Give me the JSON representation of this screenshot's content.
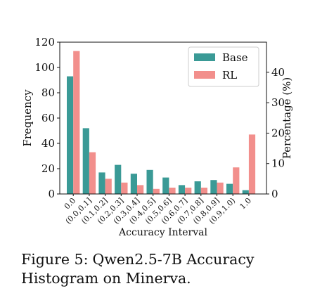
{
  "chart_data": {
    "type": "bar",
    "xlabel": "Accuracy Interval",
    "ylabel": "Frequency",
    "y2label": "Percentage (%)",
    "categories": [
      "0.0",
      "(0.0,0.1]",
      "(0.1,0.2]",
      "(0.2,0.3]",
      "(0.3,0.4]",
      "(0.4,0.5]",
      "(0.5,0.6]",
      "(0.6,0.7]",
      "(0.7,0.8]",
      "(0.8,0.9]",
      "(0.9,1.0)",
      "1.0"
    ],
    "ylim": [
      0,
      120
    ],
    "y2lim": [
      0,
      49.9
    ],
    "yticks": [
      0,
      20,
      40,
      60,
      80,
      100,
      120
    ],
    "y2ticks": [
      0,
      10,
      20,
      30,
      40
    ],
    "legend_position": "top-right",
    "series": [
      {
        "name": "Base",
        "color": "#3a9a96",
        "values": [
          93,
          52,
          17,
          23,
          16,
          19,
          13,
          7,
          10,
          11,
          8,
          3
        ]
      },
      {
        "name": "RL",
        "color": "#f28f8c",
        "values": [
          113,
          33,
          12,
          9,
          7,
          4,
          5,
          5,
          5,
          9,
          21,
          47
        ]
      }
    ]
  },
  "caption": {
    "label": "Figure 5:",
    "text": "Qwen2.5-7B Accuracy Histogram on Minerva."
  }
}
